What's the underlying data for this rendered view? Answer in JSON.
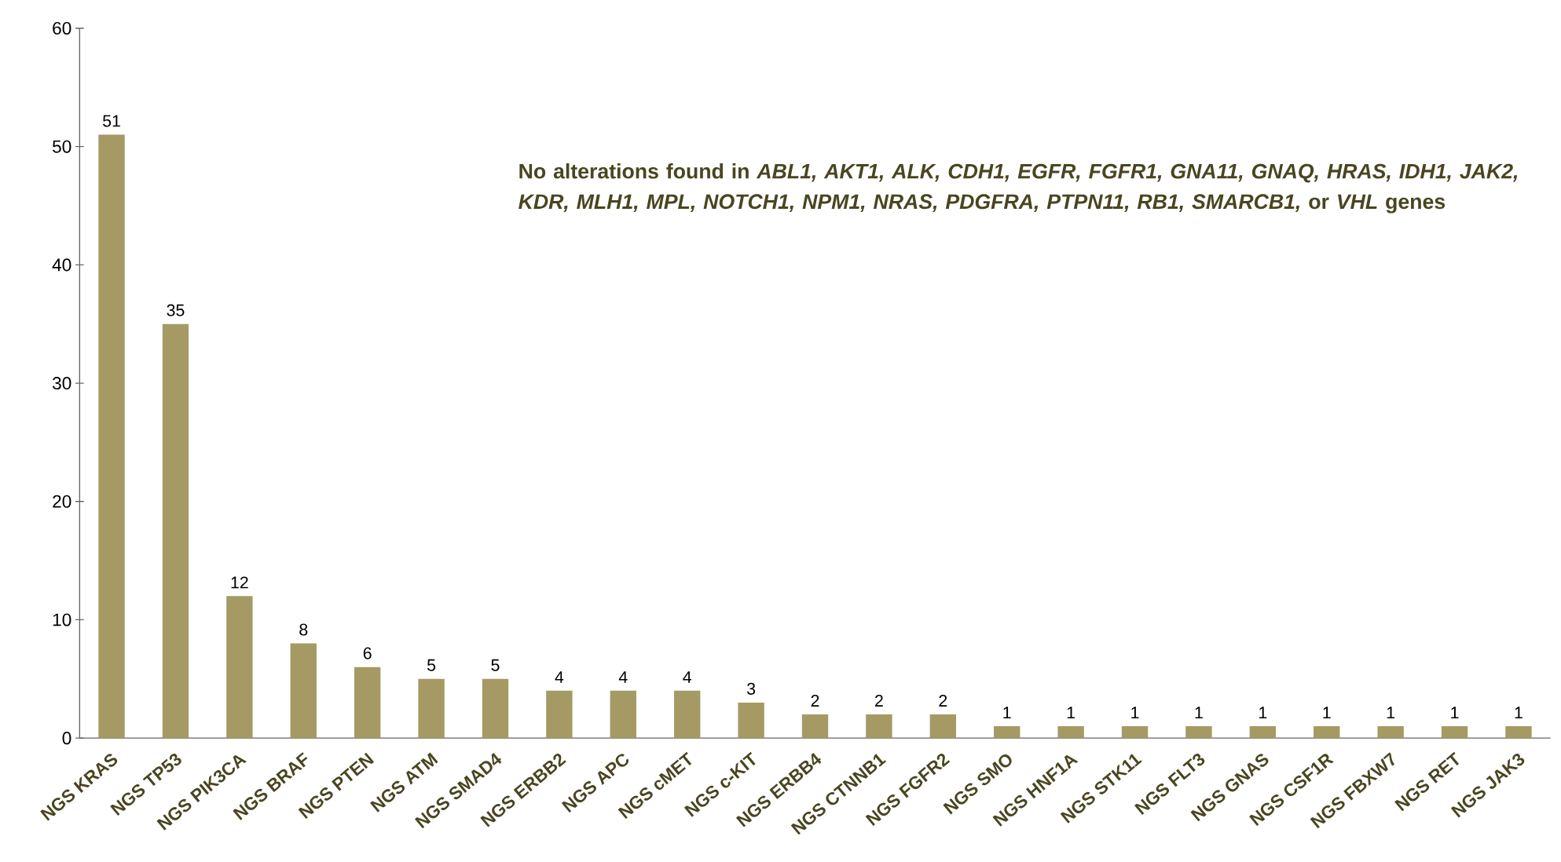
{
  "chart_data": {
    "type": "bar",
    "categories": [
      "NGS KRAS",
      "NGS TP53",
      "NGS PIK3CA",
      "NGS BRAF",
      "NGS PTEN",
      "NGS ATM",
      "NGS SMAD4",
      "NGS ERBB2",
      "NGS APC",
      "NGS cMET",
      "NGS c-KIT",
      "NGS ERBB4",
      "NGS CTNNB1",
      "NGS FGFR2",
      "NGS SMO",
      "NGS HNF1A",
      "NGS STK11",
      "NGS FLT3",
      "NGS GNAS",
      "NGS CSF1R",
      "NGS FBXW7",
      "NGS RET",
      "NGS JAK3"
    ],
    "values": [
      51,
      35,
      12,
      8,
      6,
      5,
      5,
      4,
      4,
      4,
      3,
      2,
      2,
      2,
      1,
      1,
      1,
      1,
      1,
      1,
      1,
      1,
      1
    ],
    "color": "#a59a63",
    "ylim": [
      0,
      60
    ],
    "yticks": [
      0,
      10,
      20,
      30,
      40,
      50,
      60
    ],
    "data_labels": true,
    "annotations": [
      "No alterations found in *ABL1, AKT1, ALK, CDH1, EGFR, FGFR1, GNA11, GNAQ, HRAS, IDH1, JAK2, KDR, MLH1, MPL, NOTCH1, NPM1, NRAS, PDGFRA, PTPN11, RB1, SMARCB1,* or *VHL* genes"
    ]
  }
}
